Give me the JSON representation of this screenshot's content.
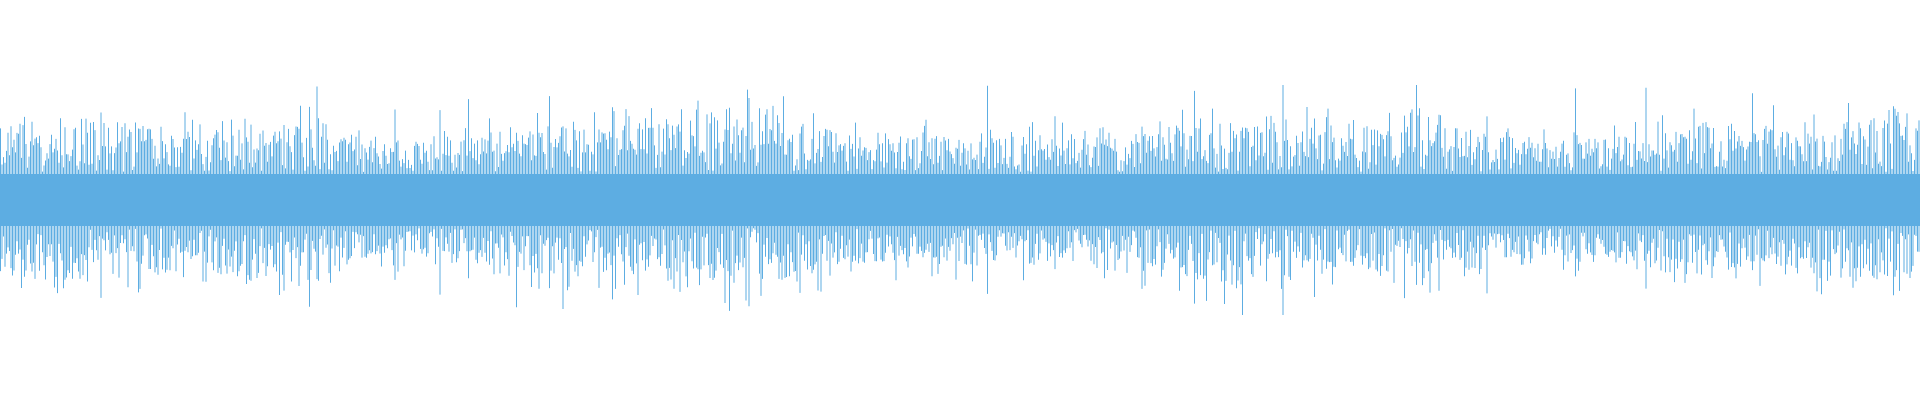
{
  "waveform": {
    "type": "audio-waveform",
    "color": "#5dade2",
    "background": "#ffffff",
    "axes": "none",
    "grid": false
  }
}
